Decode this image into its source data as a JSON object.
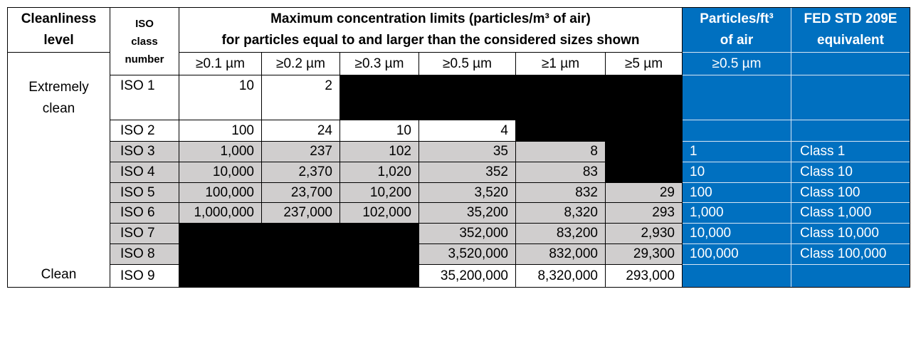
{
  "headers": {
    "cleanliness": "Cleanliness level",
    "iso_class": "ISO class number",
    "max_conc": "Maximum concentration limits (particles/m³ of air)",
    "max_conc_sub": "for particles equal to and larger than the considered sizes shown",
    "ft3": "Particles/ft³ of air",
    "fed": "FED STD 209E equivalent"
  },
  "sizes": [
    "≥0.1 µm",
    "≥0.2 µm",
    "≥0.3 µm",
    "≥0.5 µm",
    "≥1 µm",
    "≥5 µm"
  ],
  "ft3_size": "≥0.5 µm",
  "levels": [
    "Extremely clean",
    "Clean"
  ],
  "rows": [
    {
      "iso": "ISO 1",
      "values": [
        "10",
        "2",
        null,
        null,
        null,
        null
      ],
      "ft3": null,
      "fed": null
    },
    {
      "iso": "ISO 2",
      "values": [
        "100",
        "24",
        "10",
        "4",
        null,
        null
      ],
      "ft3": null,
      "fed": null
    },
    {
      "iso": "ISO 3",
      "values": [
        "1,000",
        "237",
        "102",
        "35",
        "8",
        null
      ],
      "ft3": "1",
      "fed": "Class 1"
    },
    {
      "iso": "ISO 4",
      "values": [
        "10,000",
        "2,370",
        "1,020",
        "352",
        "83",
        null
      ],
      "ft3": "10",
      "fed": "Class 10"
    },
    {
      "iso": "ISO 5",
      "values": [
        "100,000",
        "23,700",
        "10,200",
        "3,520",
        "832",
        "29"
      ],
      "ft3": "100",
      "fed": "Class 100"
    },
    {
      "iso": "ISO 6",
      "values": [
        "1,000,000",
        "237,000",
        "102,000",
        "35,200",
        "8,320",
        "293"
      ],
      "ft3": "1,000",
      "fed": "Class 1,000"
    },
    {
      "iso": "ISO 7",
      "values": [
        null,
        null,
        null,
        "352,000",
        "83,200",
        "2,930"
      ],
      "ft3": "10,000",
      "fed": "Class 10,000"
    },
    {
      "iso": "ISO 8",
      "values": [
        null,
        null,
        null,
        "3,520,000",
        "832,000",
        "29,300"
      ],
      "ft3": "100,000",
      "fed": "Class 100,000"
    },
    {
      "iso": "ISO 9",
      "values": [
        null,
        null,
        null,
        "35,200,000",
        "8,320,000",
        "293,000"
      ],
      "ft3": null,
      "fed": null
    }
  ]
}
